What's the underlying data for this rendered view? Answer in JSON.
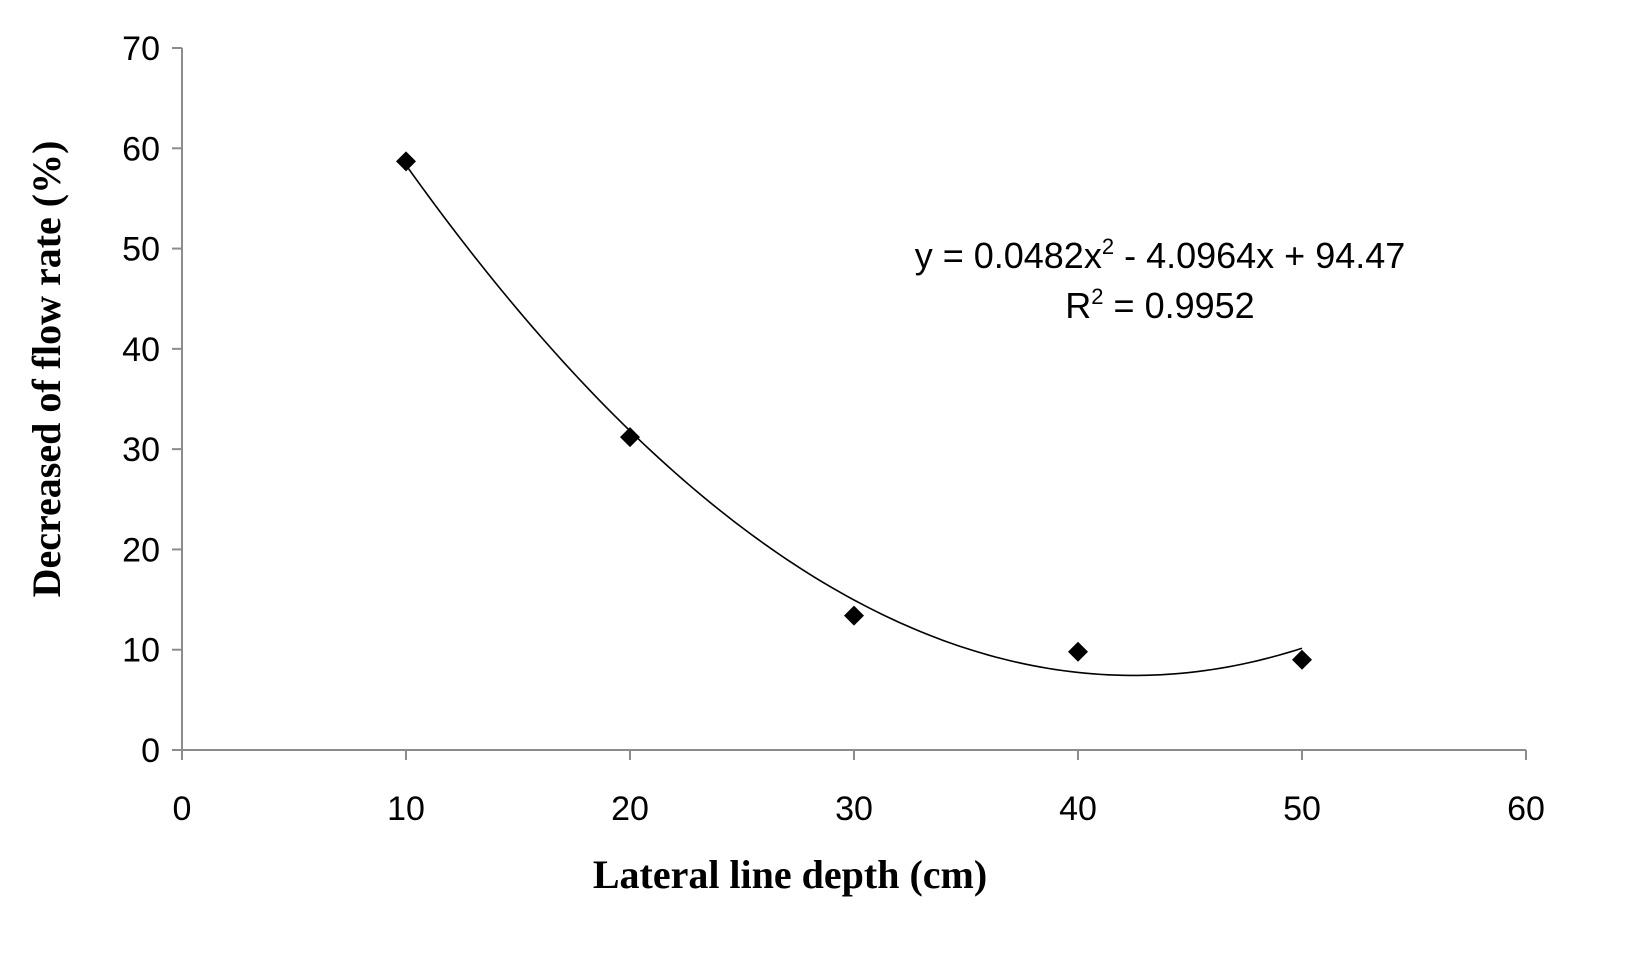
{
  "chart_data": {
    "type": "scatter",
    "xlabel": "Lateral line depth (cm)",
    "ylabel": "Decreased of flow rate (%)",
    "xlim": [
      0,
      60
    ],
    "ylim": [
      0,
      70
    ],
    "x_ticks": [
      0,
      10,
      20,
      30,
      40,
      50,
      60
    ],
    "y_ticks": [
      0,
      10,
      20,
      30,
      40,
      50,
      60,
      70
    ],
    "grid": false,
    "legend": "none",
    "marker": "diamond",
    "series": [
      {
        "x": [
          10,
          20,
          30,
          40,
          50
        ],
        "y": [
          58.7,
          31.2,
          13.4,
          9.8,
          9.0
        ]
      }
    ],
    "trendline": {
      "type": "polynomial",
      "order": 2,
      "coefficients": [
        0.0482,
        -4.0964,
        94.47
      ],
      "x_range": [
        10,
        50
      ]
    },
    "annotation": {
      "equation_prefix": "y = 0.0482x",
      "equation_sup": "2",
      "equation_suffix": " - 4.0964x + 94.47",
      "r2_prefix": "R",
      "r2_sup": "2",
      "r2_suffix": " = 0.9952"
    }
  },
  "colors": {
    "axis": "#8c8c8c",
    "marker": "#000000",
    "trendline": "#000000"
  }
}
